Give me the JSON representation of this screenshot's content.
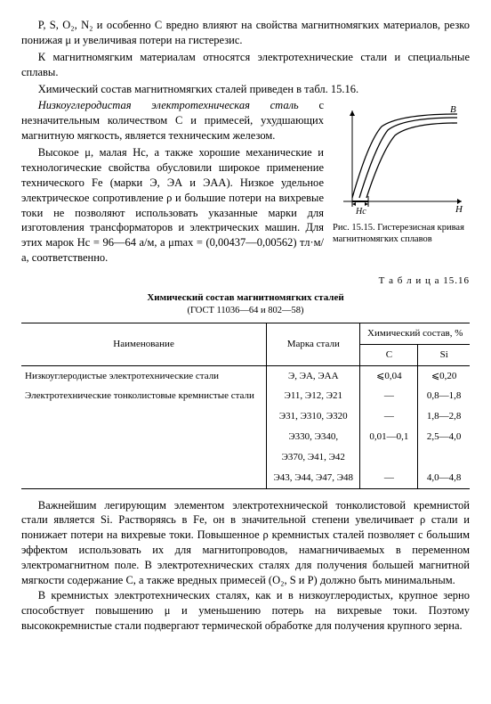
{
  "paragraphs": {
    "p1": "P, S, O₂, N₂ и особенно C вредно влияют на свойства магнитномягких материалов, резко понижая μ и увеличивая потери на гистерезис.",
    "p2": "К магнитномягким материалам относятся электротехнические стали и специальные сплавы.",
    "p3": "Химический состав магнитномягких сталей приведен в табл. 15.16.",
    "p4a": "Низкоуглеродистая электротехническая сталь",
    "p4b": " с незначительным количеством C и примесей, ухудшающих магнитную мягкость, является техническим железом.",
    "p5": "Высокое μ, малая Hc, а также хорошие механические и технологические свойства обусловили широкое применение технического Fe (марки Э, ЭА и ЭАА). Низкое удельное электрическое сопротивление ρ и большие потери на вихревые токи не позволяют использовать указанные марки для изготовления трансформаторов и электрических машин. Для этих марок Hc = 96—64 а/м, а μmax = (0,00437—0,00562) тл·м/а, соответственно.",
    "p6": "Важнейшим легирующим элементом электротехнической тонколистовой кремнистой стали является Si. Растворяясь в Fe, он в значительной степени увеличивает ρ стали и понижает потери на вихревые токи. Повышенное ρ кремнистых сталей позволяет с большим эффектом использовать их для магнитопроводов, намагничиваемых в переменном электромагнитном поле. В электротехнических сталях для получения большей магнитной мягкости содержание C, а также вредных примесей (O₂, S и P) должно быть минимальным.",
    "p7": "В кремнистых электротехнических сталях, как и в низкоуглеродистых, крупное зерно способствует повышению μ и уменьшению потерь на вихревые токи. Поэтому высококремнистые стали подвергают термической обработке для получения крупного зерна."
  },
  "figure": {
    "caption": "Рис. 15.15. Гистерезисная кривая магнитномягких сплавов",
    "axis_y": "B",
    "axis_x": "H",
    "hc_label": "Hc",
    "curve_color": "#000000",
    "axis_color": "#000000",
    "width": 150,
    "height": 130
  },
  "table": {
    "label": "Т а б л и ц а  15.16",
    "title": "Химический состав магнитномягких сталей",
    "subtitle": "(ГОСТ 11036—64 и 802—58)",
    "head": {
      "name": "Наименование",
      "mark": "Марка стали",
      "chem": "Химический состав, %",
      "c": "C",
      "si": "Si"
    },
    "rows": [
      {
        "name": "Низкоуглеродистые электротехнические стали",
        "mark": "Э, ЭА, ЭАА",
        "c": "⩽0,04",
        "si": "⩽0,20"
      },
      {
        "name": "Электротехнические тонколистовые кремнистые стали",
        "mark": "Э11, Э12, Э21",
        "c": "—",
        "si": "0,8—1,8"
      },
      {
        "name": "",
        "mark": "Э31, Э310, Э320",
        "c": "—",
        "si": "1,8—2,8"
      },
      {
        "name": "",
        "mark": "Э330, Э340,",
        "c": "0,01—0,1",
        "si": "2,5—4,0"
      },
      {
        "name": "",
        "mark": "Э370, Э41, Э42",
        "c": "",
        "si": ""
      },
      {
        "name": "",
        "mark": "Э43, Э44, Э47, Э48",
        "c": "—",
        "si": "4,0—4,8"
      }
    ]
  }
}
